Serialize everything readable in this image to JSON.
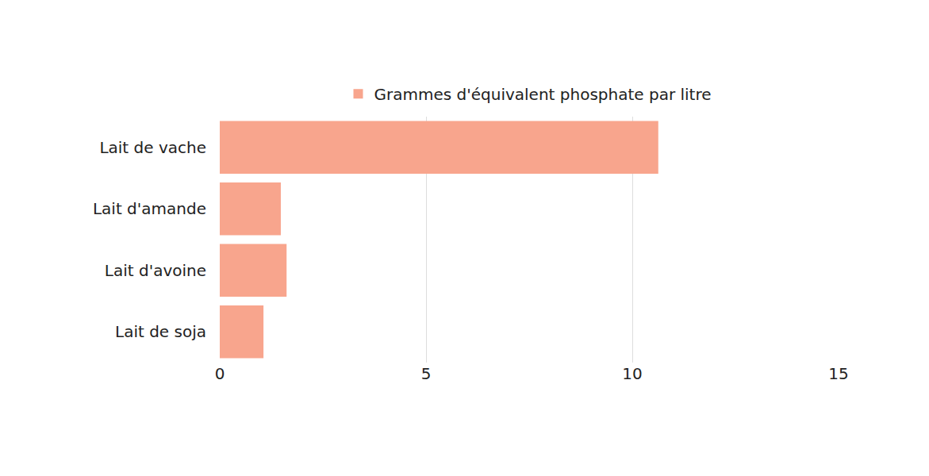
{
  "chart_data": {
    "type": "bar",
    "orientation": "horizontal",
    "categories": [
      "Lait de vache",
      "Lait d'amande",
      "Lait d'avoine",
      "Lait de soja"
    ],
    "series": [
      {
        "name": "Grammes d'équivalent phosphate par litre",
        "color": "#f8a58d",
        "values": [
          10.63,
          1.48,
          1.62,
          1.06
        ]
      }
    ],
    "xlim": [
      0,
      15
    ],
    "xticks": [
      0,
      5,
      10,
      15
    ],
    "grid": true,
    "legend": "top"
  }
}
